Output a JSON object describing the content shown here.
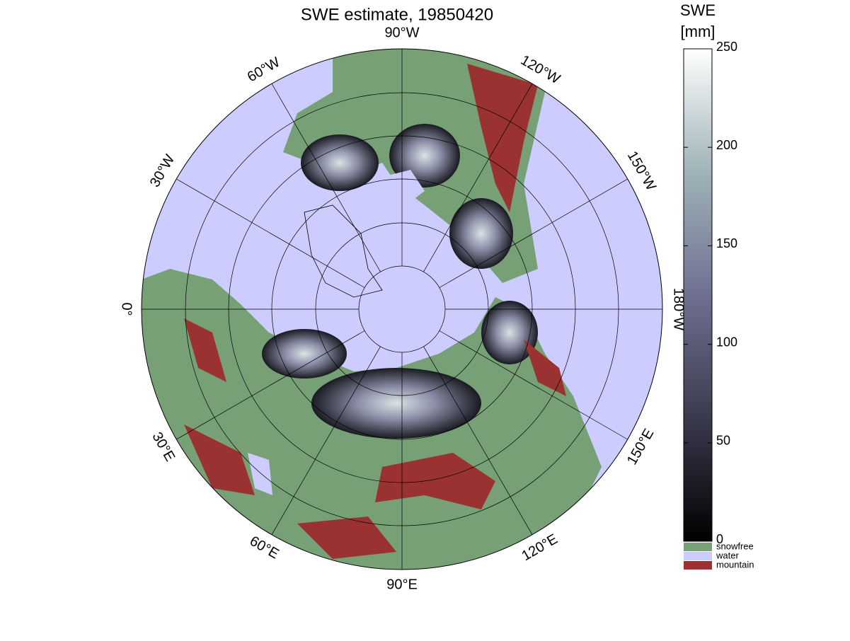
{
  "title": "SWE estimate, 19850420",
  "meridian_labels": [
    "90°W",
    "120°W",
    "150°W",
    "180°W",
    "150°E",
    "120°E",
    "90°E",
    "60°E",
    "30°E",
    "0°",
    "30°W",
    "60°W"
  ],
  "colorbar": {
    "title_lines": [
      "SWE",
      "[mm]"
    ],
    "ylim": [
      0,
      250
    ],
    "yticks": [
      0,
      50,
      100,
      150,
      200,
      250
    ],
    "colors": [
      "#000000",
      "#3a3a4e",
      "#6f7090",
      "#9fb3b8",
      "#ffffff"
    ]
  },
  "categories": [
    {
      "label": "snowfree",
      "color": "#77a077"
    },
    {
      "label": "water",
      "color": "#ccccff"
    },
    {
      "label": "mountain",
      "color": "#9a3232"
    }
  ]
}
